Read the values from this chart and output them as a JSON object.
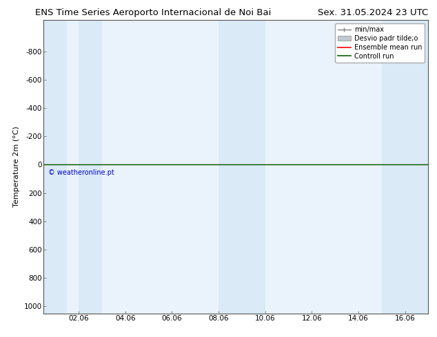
{
  "title_left": "ENS Time Series Aeroporto Internacional de Noi Bai",
  "title_right": "Sex. 31.05.2024 23 UTC",
  "ylabel": "Temperature 2m (°C)",
  "ylim_bottom": 1050,
  "ylim_top": -1020,
  "yticks": [
    -800,
    -600,
    -400,
    -200,
    0,
    200,
    400,
    600,
    800,
    1000
  ],
  "xlim_min": 0.0,
  "xlim_max": 16.5,
  "xtick_labels": [
    "02.06",
    "04.06",
    "06.06",
    "08.06",
    "10.06",
    "12.06",
    "14.06",
    "16.06"
  ],
  "xtick_positions": [
    1.5,
    3.5,
    5.5,
    7.5,
    9.5,
    11.5,
    13.5,
    15.5
  ],
  "shaded_bands": [
    {
      "x_start": 0.0,
      "x_end": 1.0
    },
    {
      "x_start": 1.5,
      "x_end": 2.5
    },
    {
      "x_start": 7.5,
      "x_end": 9.5
    },
    {
      "x_start": 14.5,
      "x_end": 16.5
    }
  ],
  "shaded_color": "#daeaf7",
  "control_run_color": "#006400",
  "ensemble_mean_color": "#ff0000",
  "minmax_color": "#808080",
  "stddev_color": "#c0c8d0",
  "watermark_text": "© weatheronline.pt",
  "watermark_color": "#0000cc",
  "legend_labels": [
    "min/max",
    "Desvio padr tilde;o",
    "Ensemble mean run",
    "Controll run"
  ],
  "legend_colors": [
    "#808080",
    "#c0c8d0",
    "#ff0000",
    "#006400"
  ],
  "bg_color": "#ffffff",
  "plot_bg_color": "#eaf3fb",
  "title_fontsize": 9.5,
  "ylabel_fontsize": 8,
  "tick_fontsize": 7.5,
  "legend_fontsize": 7
}
